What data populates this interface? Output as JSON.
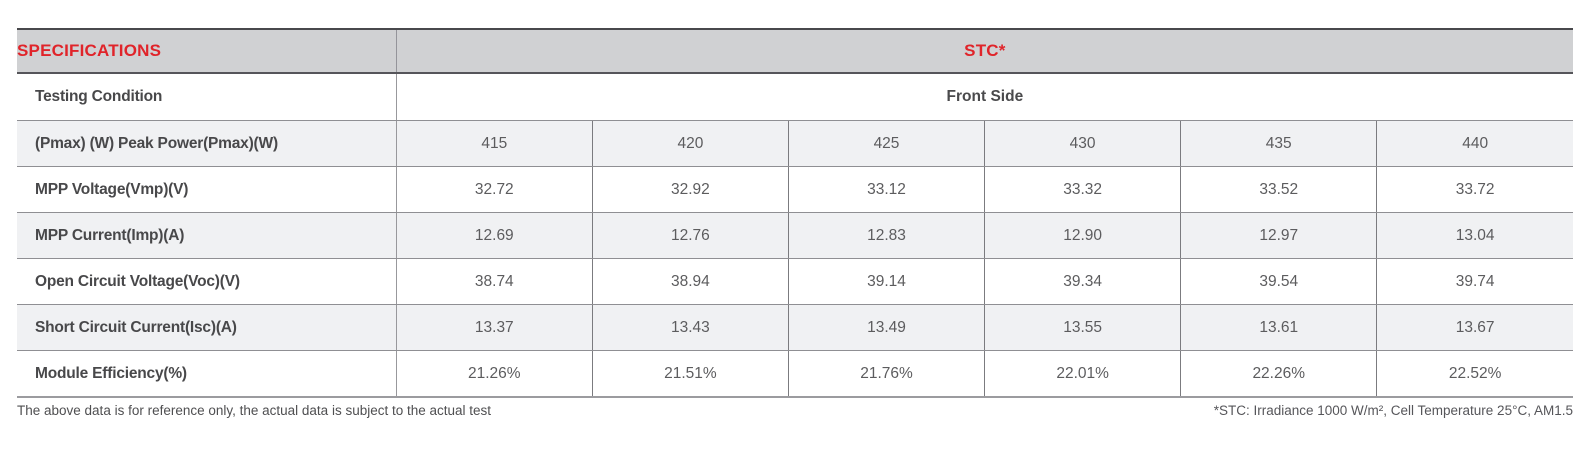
{
  "table": {
    "header": {
      "specifications": "SPECIFICATIONS",
      "stc": "STC*"
    },
    "subheader": {
      "label": "Testing Condition",
      "value": "Front Side"
    },
    "rows": [
      {
        "label": "(Pmax) (W) Peak Power(Pmax)(W)",
        "values": [
          "415",
          "420",
          "425",
          "430",
          "435",
          "440"
        ]
      },
      {
        "label": "MPP Voltage(Vmp)(V)",
        "values": [
          "32.72",
          "32.92",
          "33.12",
          "33.32",
          "33.52",
          "33.72"
        ]
      },
      {
        "label": "MPP Current(Imp)(A)",
        "values": [
          "12.69",
          "12.76",
          "12.83",
          "12.90",
          "12.97",
          "13.04"
        ]
      },
      {
        "label": "Open Circuit Voltage(Voc)(V)",
        "values": [
          "38.74",
          "38.94",
          "39.14",
          "39.34",
          "39.54",
          "39.74"
        ]
      },
      {
        "label": "Short Circuit Current(Isc)(A)",
        "values": [
          "13.37",
          "13.43",
          "13.49",
          "13.55",
          "13.61",
          "13.67"
        ]
      },
      {
        "label": "Module Efficiency(%)",
        "values": [
          "21.26%",
          "21.51%",
          "21.76%",
          "22.01%",
          "22.26%",
          "22.52%"
        ]
      }
    ]
  },
  "footer": {
    "disclaimer": "The above data is for reference only, the actual data is subject to the actual test",
    "stc_note": "*STC: Irradiance 1000 W/m², Cell Temperature 25°C, AM1.5"
  },
  "colors": {
    "accent_red": "#e0242a",
    "header_bg": "#d0d1d3",
    "alt_row_bg": "#f0f1f3",
    "border_dark": "#48484c",
    "border_gray": "#8f8f93"
  }
}
